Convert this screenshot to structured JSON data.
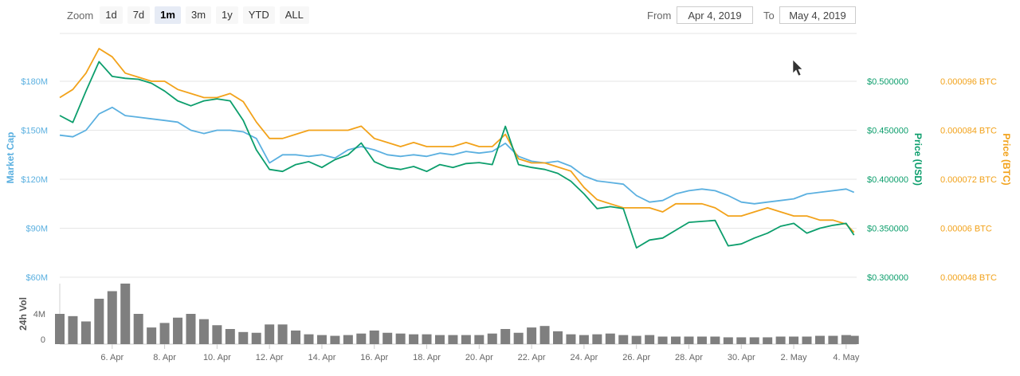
{
  "zoom": {
    "label": "Zoom",
    "buttons": [
      "1d",
      "7d",
      "1m",
      "3m",
      "1y",
      "YTD",
      "ALL"
    ],
    "active": "1m"
  },
  "range": {
    "from_label": "From",
    "from_value": "Apr 4, 2019",
    "to_label": "To",
    "to_value": "May 4, 2019"
  },
  "colors": {
    "market_cap": "#5bb0e0",
    "price_usd": "#0c9e6c",
    "price_btc": "#f2a21a",
    "volume": "#7f7f7f",
    "grid": "#e6e6e6"
  },
  "chart_data": {
    "type": "line",
    "x_axis": {
      "ticks": [
        "6. Apr",
        "8. Apr",
        "10. Apr",
        "12. Apr",
        "14. Apr",
        "16. Apr",
        "18. Apr",
        "20. Apr",
        "22. Apr",
        "24. Apr",
        "26. Apr",
        "28. Apr",
        "30. Apr",
        "2. May",
        "4. May"
      ],
      "range": [
        "2019-04-04",
        "2019-05-04"
      ]
    },
    "y_axes": {
      "market_cap": {
        "title": "Market Cap",
        "ticks": [
          "$60M",
          "$90M",
          "$120M",
          "$150M",
          "$180M"
        ],
        "range": [
          60,
          180
        ],
        "unit": "M USD"
      },
      "price_usd": {
        "title": "Price (USD)",
        "ticks": [
          "$0.300000",
          "$0.350000",
          "$0.400000",
          "$0.450000",
          "$0.500000"
        ],
        "range": [
          0.3,
          0.5
        ]
      },
      "price_btc": {
        "title": "Price (BTC)",
        "ticks": [
          "0.000048 BTC",
          "0.00006 BTC",
          "0.000072 BTC",
          "0.000084 BTC",
          "0.000096 BTC"
        ],
        "range": [
          4.8e-05,
          9.6e-05
        ]
      },
      "volume": {
        "title": "24h Vol",
        "ticks": [
          "0",
          "4M"
        ],
        "range": [
          0,
          8
        ]
      }
    },
    "series": [
      {
        "name": "Market Cap",
        "axis": "market_cap",
        "x": [
          4.0,
          4.5,
          5.0,
          5.5,
          6.0,
          6.5,
          7.0,
          7.5,
          8.0,
          8.5,
          9.0,
          9.5,
          10.0,
          10.5,
          11.0,
          11.5,
          12.0,
          12.5,
          13.0,
          13.5,
          14.0,
          14.5,
          15.0,
          15.5,
          16.0,
          16.5,
          17.0,
          17.5,
          18.0,
          18.5,
          19.0,
          19.5,
          20.0,
          20.5,
          21.0,
          21.5,
          22.0,
          22.5,
          23.0,
          23.5,
          24.0,
          24.5,
          25.0,
          25.5,
          26.0,
          26.5,
          27.0,
          27.5,
          28.0,
          28.5,
          29.0,
          29.5,
          30.0,
          30.5,
          31.0,
          31.5,
          32.0,
          32.5,
          33.0,
          33.5,
          34.0,
          34.3
        ],
        "values": [
          147,
          146,
          150,
          160,
          164,
          159,
          158,
          157,
          156,
          155,
          150,
          148,
          150,
          150,
          149,
          145,
          130,
          135,
          135,
          134,
          135,
          133,
          138,
          140,
          138,
          135,
          134,
          135,
          134,
          136,
          135,
          137,
          136,
          137,
          142,
          134,
          131,
          130,
          131,
          128,
          122,
          119,
          118,
          117,
          110,
          106,
          107,
          111,
          113,
          114,
          113,
          110,
          106,
          105,
          106,
          107,
          108,
          111,
          112,
          113,
          114,
          112
        ]
      },
      {
        "name": "Price (USD)",
        "axis": "price_usd",
        "x": [
          4.0,
          4.5,
          5.0,
          5.5,
          6.0,
          6.5,
          7.0,
          7.5,
          8.0,
          8.5,
          9.0,
          9.5,
          10.0,
          10.5,
          11.0,
          11.5,
          12.0,
          12.5,
          13.0,
          13.5,
          14.0,
          14.5,
          15.0,
          15.5,
          16.0,
          16.5,
          17.0,
          17.5,
          18.0,
          18.5,
          19.0,
          19.5,
          20.0,
          20.5,
          21.0,
          21.5,
          22.0,
          22.5,
          23.0,
          23.5,
          24.0,
          24.5,
          25.0,
          25.5,
          26.0,
          26.5,
          27.0,
          27.5,
          28.0,
          28.5,
          29.0,
          29.5,
          30.0,
          30.5,
          31.0,
          31.5,
          32.0,
          32.5,
          33.0,
          33.5,
          34.0,
          34.3
        ],
        "values": [
          0.465,
          0.458,
          0.49,
          0.52,
          0.505,
          0.503,
          0.502,
          0.498,
          0.49,
          0.48,
          0.475,
          0.48,
          0.482,
          0.48,
          0.46,
          0.43,
          0.41,
          0.408,
          0.415,
          0.418,
          0.412,
          0.42,
          0.425,
          0.437,
          0.418,
          0.412,
          0.41,
          0.413,
          0.408,
          0.415,
          0.412,
          0.416,
          0.417,
          0.415,
          0.454,
          0.415,
          0.412,
          0.41,
          0.406,
          0.398,
          0.385,
          0.37,
          0.372,
          0.37,
          0.33,
          0.338,
          0.34,
          0.348,
          0.356,
          0.357,
          0.358,
          0.332,
          0.334,
          0.34,
          0.345,
          0.352,
          0.355,
          0.345,
          0.35,
          0.353,
          0.355,
          0.343
        ]
      },
      {
        "name": "Price (BTC)",
        "axis": "price_btc",
        "x": [
          4.0,
          4.5,
          5.0,
          5.5,
          6.0,
          6.5,
          7.0,
          7.5,
          8.0,
          8.5,
          9.0,
          9.5,
          10.0,
          10.5,
          11.0,
          11.5,
          12.0,
          12.5,
          13.0,
          13.5,
          14.0,
          14.5,
          15.0,
          15.5,
          16.0,
          16.5,
          17.0,
          17.5,
          18.0,
          18.5,
          19.0,
          19.5,
          20.0,
          20.5,
          21.0,
          21.5,
          22.0,
          22.5,
          23.0,
          23.5,
          24.0,
          24.5,
          25.0,
          25.5,
          26.0,
          26.5,
          27.0,
          27.5,
          28.0,
          28.5,
          29.0,
          29.5,
          30.0,
          30.5,
          31.0,
          31.5,
          32.0,
          32.5,
          33.0,
          33.5,
          34.0,
          34.3
        ],
        "values": [
          9.2e-05,
          9.4e-05,
          9.8e-05,
          0.000104,
          0.000102,
          9.8e-05,
          9.7e-05,
          9.6e-05,
          9.6e-05,
          9.4e-05,
          9.3e-05,
          9.2e-05,
          9.2e-05,
          9.3e-05,
          9.1e-05,
          8.6e-05,
          8.2e-05,
          8.2e-05,
          8.3e-05,
          8.4e-05,
          8.4e-05,
          8.4e-05,
          8.4e-05,
          8.5e-05,
          8.2e-05,
          8.1e-05,
          8e-05,
          8.1e-05,
          8e-05,
          8e-05,
          8e-05,
          8.1e-05,
          8e-05,
          8e-05,
          8.3e-05,
          7.7e-05,
          7.6e-05,
          7.6e-05,
          7.5e-05,
          7.4e-05,
          7e-05,
          6.7e-05,
          6.6e-05,
          6.5e-05,
          6.5e-05,
          6.5e-05,
          6.4e-05,
          6.6e-05,
          6.6e-05,
          6.6e-05,
          6.5e-05,
          6.3e-05,
          6.3e-05,
          6.4e-05,
          6.5e-05,
          6.4e-05,
          6.3e-05,
          6.3e-05,
          6.2e-05,
          6.2e-05,
          6.1e-05,
          5.9e-05
        ]
      },
      {
        "name": "24h Vol",
        "axis": "volume",
        "type": "bar",
        "x": [
          4.0,
          4.5,
          5.0,
          5.5,
          6.0,
          6.5,
          7.0,
          7.5,
          8.0,
          8.5,
          9.0,
          9.5,
          10.0,
          10.5,
          11.0,
          11.5,
          12.0,
          12.5,
          13.0,
          13.5,
          14.0,
          14.5,
          15.0,
          15.5,
          16.0,
          16.5,
          17.0,
          17.5,
          18.0,
          18.5,
          19.0,
          19.5,
          20.0,
          20.5,
          21.0,
          21.5,
          22.0,
          22.5,
          23.0,
          23.5,
          24.0,
          24.5,
          25.0,
          25.5,
          26.0,
          26.5,
          27.0,
          27.5,
          28.0,
          28.5,
          29.0,
          29.5,
          30.0,
          30.5,
          31.0,
          31.5,
          32.0,
          32.5,
          33.0,
          33.5,
          34.0,
          34.3
        ],
        "values": [
          4.0,
          3.7,
          3.0,
          6.0,
          7.0,
          8.0,
          4.0,
          2.2,
          2.8,
          3.5,
          4.0,
          3.3,
          2.5,
          2.0,
          1.6,
          1.5,
          2.6,
          2.6,
          1.8,
          1.3,
          1.2,
          1.1,
          1.2,
          1.4,
          1.8,
          1.5,
          1.4,
          1.3,
          1.3,
          1.2,
          1.2,
          1.2,
          1.2,
          1.4,
          2.0,
          1.5,
          2.2,
          2.4,
          1.7,
          1.3,
          1.2,
          1.3,
          1.4,
          1.2,
          1.1,
          1.2,
          1.0,
          1.0,
          1.0,
          1.0,
          1.0,
          0.9,
          0.9,
          0.9,
          0.9,
          1.0,
          1.0,
          1.0,
          1.1,
          1.1,
          1.2,
          1.1
        ]
      }
    ]
  }
}
